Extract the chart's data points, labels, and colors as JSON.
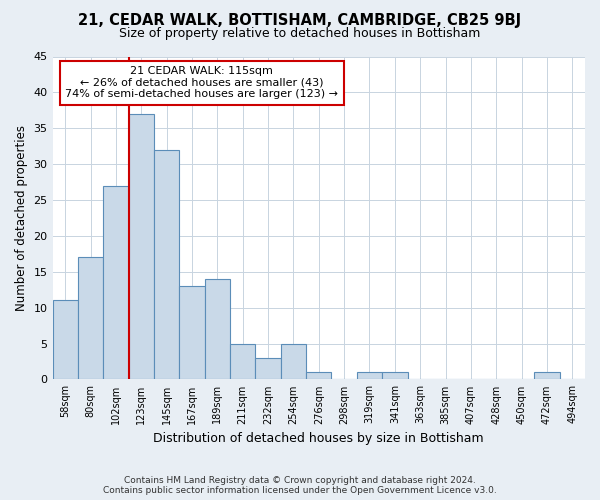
{
  "title": "21, CEDAR WALK, BOTTISHAM, CAMBRIDGE, CB25 9BJ",
  "subtitle": "Size of property relative to detached houses in Bottisham",
  "xlabel": "Distribution of detached houses by size in Bottisham",
  "ylabel": "Number of detached properties",
  "footer_line1": "Contains HM Land Registry data © Crown copyright and database right 2024.",
  "footer_line2": "Contains public sector information licensed under the Open Government Licence v3.0.",
  "bin_labels": [
    "58sqm",
    "80sqm",
    "102sqm",
    "123sqm",
    "145sqm",
    "167sqm",
    "189sqm",
    "211sqm",
    "232sqm",
    "254sqm",
    "276sqm",
    "298sqm",
    "319sqm",
    "341sqm",
    "363sqm",
    "385sqm",
    "407sqm",
    "428sqm",
    "450sqm",
    "472sqm",
    "494sqm"
  ],
  "values": [
    11,
    17,
    27,
    37,
    32,
    13,
    14,
    5,
    3,
    5,
    1,
    0,
    1,
    1,
    0,
    0,
    0,
    0,
    0,
    1,
    0
  ],
  "bar_color": "#c9d9e8",
  "bar_edge_color": "#5b8db8",
  "property_line_x": 2.5,
  "property_line_color": "#cc0000",
  "annotation_text": "21 CEDAR WALK: 115sqm\n← 26% of detached houses are smaller (43)\n74% of semi-detached houses are larger (123) →",
  "annotation_box_color": "#ffffff",
  "annotation_box_edge_color": "#cc0000",
  "ylim": [
    0,
    45
  ],
  "yticks": [
    0,
    5,
    10,
    15,
    20,
    25,
    30,
    35,
    40,
    45
  ],
  "background_color": "#e8eef4",
  "plot_background_color": "#ffffff",
  "grid_color": "#c8d4e0"
}
